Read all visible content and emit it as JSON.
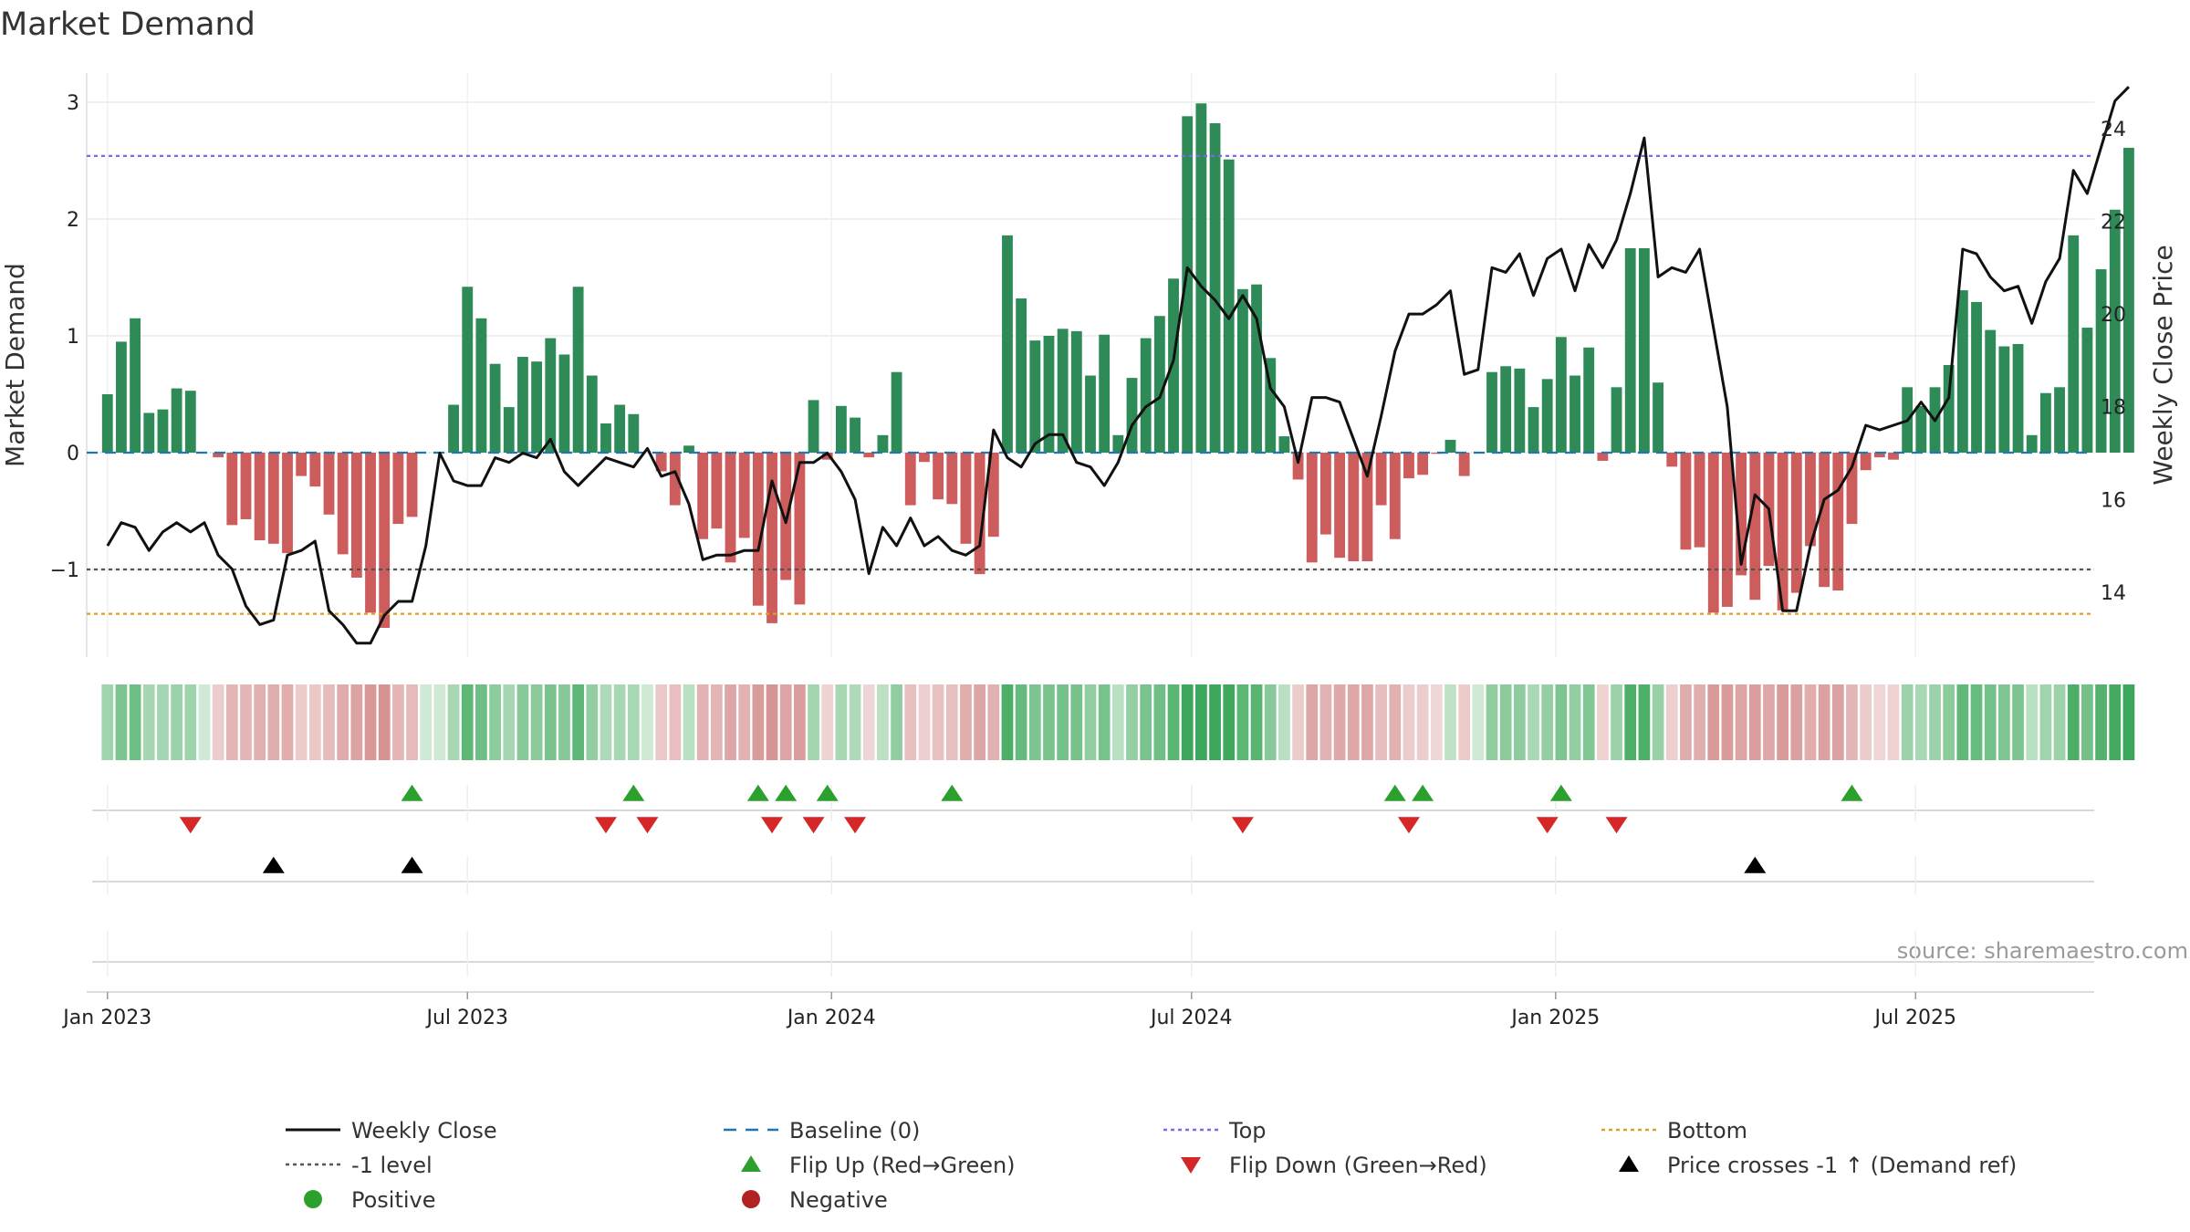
{
  "chart_data": {
    "type": "bar",
    "title": "Market Demand",
    "ylabel": "Market Demand",
    "y2label": "Weekly Close Price",
    "ylim": [
      -1.75,
      3.25
    ],
    "y2lim": [
      12.6,
      25.2
    ],
    "yticks": [
      -1,
      0,
      1,
      2,
      3
    ],
    "y2ticks": [
      14,
      16,
      18,
      20,
      22,
      24
    ],
    "xlim": [
      -1.5,
      143.5
    ],
    "x_ticks": [
      {
        "label": "Jan 2023",
        "week": 0
      },
      {
        "label": "Jul 2023",
        "week": 26
      },
      {
        "label": "Jan 2024",
        "week": 52.3
      },
      {
        "label": "Jul 2024",
        "week": 78.3
      },
      {
        "label": "Jan 2025",
        "week": 104.6
      },
      {
        "label": "Jul 2025",
        "week": 130.6
      }
    ],
    "demand": [
      0.5,
      0.95,
      1.15,
      0.34,
      0.37,
      0.55,
      0.53,
      0.0,
      -0.04,
      -0.62,
      -0.57,
      -0.75,
      -0.78,
      -0.86,
      -0.2,
      -0.29,
      -0.53,
      -0.87,
      -1.07,
      -1.37,
      -1.5,
      -0.61,
      -0.55,
      0.0,
      0.0,
      0.41,
      1.42,
      1.15,
      0.76,
      0.39,
      0.82,
      0.78,
      0.98,
      0.84,
      1.42,
      0.66,
      0.25,
      0.41,
      0.33,
      0.0,
      -0.16,
      -0.45,
      0.06,
      -0.74,
      -0.65,
      -0.94,
      -0.73,
      -1.31,
      -1.46,
      -1.09,
      -1.3,
      0.45,
      -0.06,
      0.4,
      0.3,
      -0.04,
      0.15,
      0.69,
      -0.45,
      -0.08,
      -0.4,
      -0.44,
      -0.78,
      -1.04,
      -0.72,
      1.86,
      1.32,
      0.96,
      1.0,
      1.06,
      1.04,
      0.66,
      1.01,
      0.15,
      0.64,
      0.98,
      1.17,
      1.49,
      2.88,
      2.99,
      2.82,
      2.51,
      1.4,
      1.44,
      0.81,
      0.14,
      -0.23,
      -0.94,
      -0.7,
      -0.9,
      -0.93,
      -0.93,
      -0.45,
      -0.74,
      -0.22,
      -0.19,
      -0.01,
      0.11,
      -0.2,
      0.0,
      0.69,
      0.74,
      0.72,
      0.39,
      0.63,
      0.99,
      0.66,
      0.9,
      -0.07,
      0.56,
      1.75,
      1.75,
      0.6,
      -0.12,
      -0.83,
      -0.81,
      -1.37,
      -1.32,
      -1.05,
      -1.26,
      -0.97,
      -1.35,
      -1.2,
      -0.8,
      -1.15,
      -1.18,
      -0.61,
      -0.15,
      -0.04,
      -0.06,
      0.56,
      0.4,
      0.56,
      0.75,
      1.39,
      1.29,
      1.05,
      0.91,
      0.93,
      0.15,
      0.51,
      0.56,
      1.86,
      1.07,
      1.57,
      2.08,
      2.61
    ],
    "close": [
      15.0,
      15.5,
      15.4,
      14.9,
      15.3,
      15.5,
      15.3,
      15.5,
      14.8,
      14.5,
      13.7,
      13.3,
      13.4,
      14.8,
      14.9,
      15.1,
      13.6,
      13.3,
      12.9,
      12.9,
      13.5,
      13.8,
      13.8,
      15.0,
      17.0,
      16.4,
      16.3,
      16.3,
      16.9,
      16.8,
      17.0,
      16.9,
      17.3,
      16.6,
      16.3,
      16.6,
      16.9,
      16.8,
      16.7,
      17.1,
      16.5,
      16.6,
      15.9,
      14.7,
      14.8,
      14.8,
      14.9,
      14.9,
      16.4,
      15.5,
      16.8,
      16.8,
      17.0,
      16.6,
      16.0,
      14.4,
      15.4,
      15.0,
      15.6,
      15.0,
      15.2,
      14.9,
      14.8,
      15.0,
      17.5,
      16.9,
      16.7,
      17.2,
      17.4,
      17.4,
      16.8,
      16.7,
      16.3,
      16.8,
      17.6,
      18.0,
      18.2,
      19.0,
      21.0,
      20.6,
      20.3,
      19.9,
      20.4,
      19.9,
      18.4,
      18.0,
      16.8,
      18.2,
      18.2,
      18.1,
      17.3,
      16.5,
      17.8,
      19.2,
      20.0,
      20.0,
      20.2,
      20.5,
      18.7,
      18.8,
      21.0,
      20.9,
      21.3,
      20.4,
      21.2,
      21.4,
      20.5,
      21.5,
      21.0,
      21.6,
      22.6,
      23.8,
      20.8,
      21.0,
      20.9,
      21.4,
      19.7,
      18.0,
      14.6,
      16.1,
      15.8,
      13.6,
      13.6,
      15.0,
      16.0,
      16.2,
      16.7,
      17.6,
      17.5,
      17.6,
      17.7,
      18.1,
      17.7,
      18.2,
      21.4,
      21.3,
      20.8,
      20.5,
      20.6,
      19.8,
      20.7,
      21.2,
      23.1,
      22.6,
      23.6,
      24.6,
      24.9
    ],
    "shading": [
      0.32,
      0.56,
      0.65,
      0.28,
      0.29,
      0.35,
      0.33,
      0.0,
      0.17,
      0.42,
      0.4,
      0.47,
      0.49,
      0.52,
      0.18,
      0.21,
      0.35,
      0.53,
      0.61,
      0.73,
      0.78,
      0.41,
      0.37,
      0.0,
      0.0,
      0.27,
      0.76,
      0.65,
      0.46,
      0.28,
      0.49,
      0.47,
      0.57,
      0.5,
      0.76,
      0.41,
      0.22,
      0.27,
      0.26,
      0.0,
      0.2,
      0.31,
      0.14,
      0.46,
      0.42,
      0.57,
      0.46,
      0.7,
      0.77,
      0.6,
      0.69,
      0.3,
      0.1,
      0.27,
      0.22,
      0.08,
      0.13,
      0.42,
      0.31,
      0.14,
      0.29,
      0.31,
      0.49,
      0.59,
      0.46,
      0.89,
      0.71,
      0.56,
      0.58,
      0.61,
      0.6,
      0.41,
      0.59,
      0.14,
      0.4,
      0.57,
      0.65,
      0.79,
      1.0,
      1.0,
      1.0,
      0.98,
      0.78,
      0.8,
      0.49,
      0.14,
      0.18,
      0.57,
      0.44,
      0.55,
      0.56,
      0.56,
      0.32,
      0.46,
      0.17,
      0.16,
      0.05,
      0.11,
      0.18,
      0.0,
      0.42,
      0.45,
      0.44,
      0.26,
      0.4,
      0.56,
      0.41,
      0.53,
      0.1,
      0.35,
      0.88,
      0.88,
      0.37,
      0.14,
      0.51,
      0.5,
      0.71,
      0.7,
      0.6,
      0.67,
      0.56,
      0.71,
      0.65,
      0.5,
      0.62,
      0.63,
      0.4,
      0.16,
      0.08,
      0.1,
      0.35,
      0.26,
      0.35,
      0.45,
      0.75,
      0.7,
      0.61,
      0.55,
      0.56,
      0.14,
      0.32,
      0.35,
      0.89,
      0.62,
      0.84,
      0.95,
      1.0
    ],
    "flip_up_weeks": [
      22,
      38,
      47,
      49,
      52,
      61,
      93,
      95,
      105,
      126
    ],
    "flip_down_weeks": [
      6,
      36,
      39,
      48,
      51,
      54,
      82,
      94,
      104,
      109
    ],
    "price_cross_weeks": [
      12,
      22,
      119
    ],
    "reference_lines": [
      {
        "name": "Baseline (0)",
        "value": 0,
        "color": "#1f77b4",
        "style": "dashed"
      },
      {
        "name": "Top",
        "value": 2.54,
        "color": "#7b68ee",
        "style": "dotted"
      },
      {
        "name": "Bottom",
        "value": -1.38,
        "color": "#e0a020",
        "style": "dotted"
      },
      {
        "name": "-1 level",
        "value": -1,
        "color": "#555555",
        "style": "dotted"
      }
    ],
    "legend": {
      "entries": [
        {
          "label": "Weekly Close",
          "symbol": "line",
          "color": "#111111"
        },
        {
          "label": "Baseline (0)",
          "symbol": "dash",
          "color": "#1f77b4"
        },
        {
          "label": "Top",
          "symbol": "dot",
          "color": "#7b68ee"
        },
        {
          "label": "Bottom",
          "symbol": "dot",
          "color": "#e0a020"
        },
        {
          "label": "-1 level",
          "symbol": "dot",
          "color": "#555555"
        },
        {
          "label": "Flip Up (Red→Green)",
          "symbol": "tri-up",
          "color": "#2ca02c"
        },
        {
          "label": "Flip Down (Green→Red)",
          "symbol": "tri-down",
          "color": "#d62728"
        },
        {
          "label": "Price crosses -1 ↑ (Demand ref)",
          "symbol": "tri-up",
          "color": "#000000"
        },
        {
          "label": "Positive",
          "symbol": "circle",
          "color": "#2ca02c"
        },
        {
          "label": "Negative",
          "symbol": "circle",
          "color": "#b22222"
        }
      ]
    },
    "source": "source: sharemaestro.com",
    "colors": {
      "positive": "#2e8b57",
      "negative": "#cd5c5c",
      "price_line": "#111111",
      "heat_positive_light": "#cfe9d4",
      "heat_positive_dark": "#3ca75a",
      "heat_negative_light": "#f2dcdc",
      "heat_negative_dark": "#cf7f7f"
    }
  }
}
